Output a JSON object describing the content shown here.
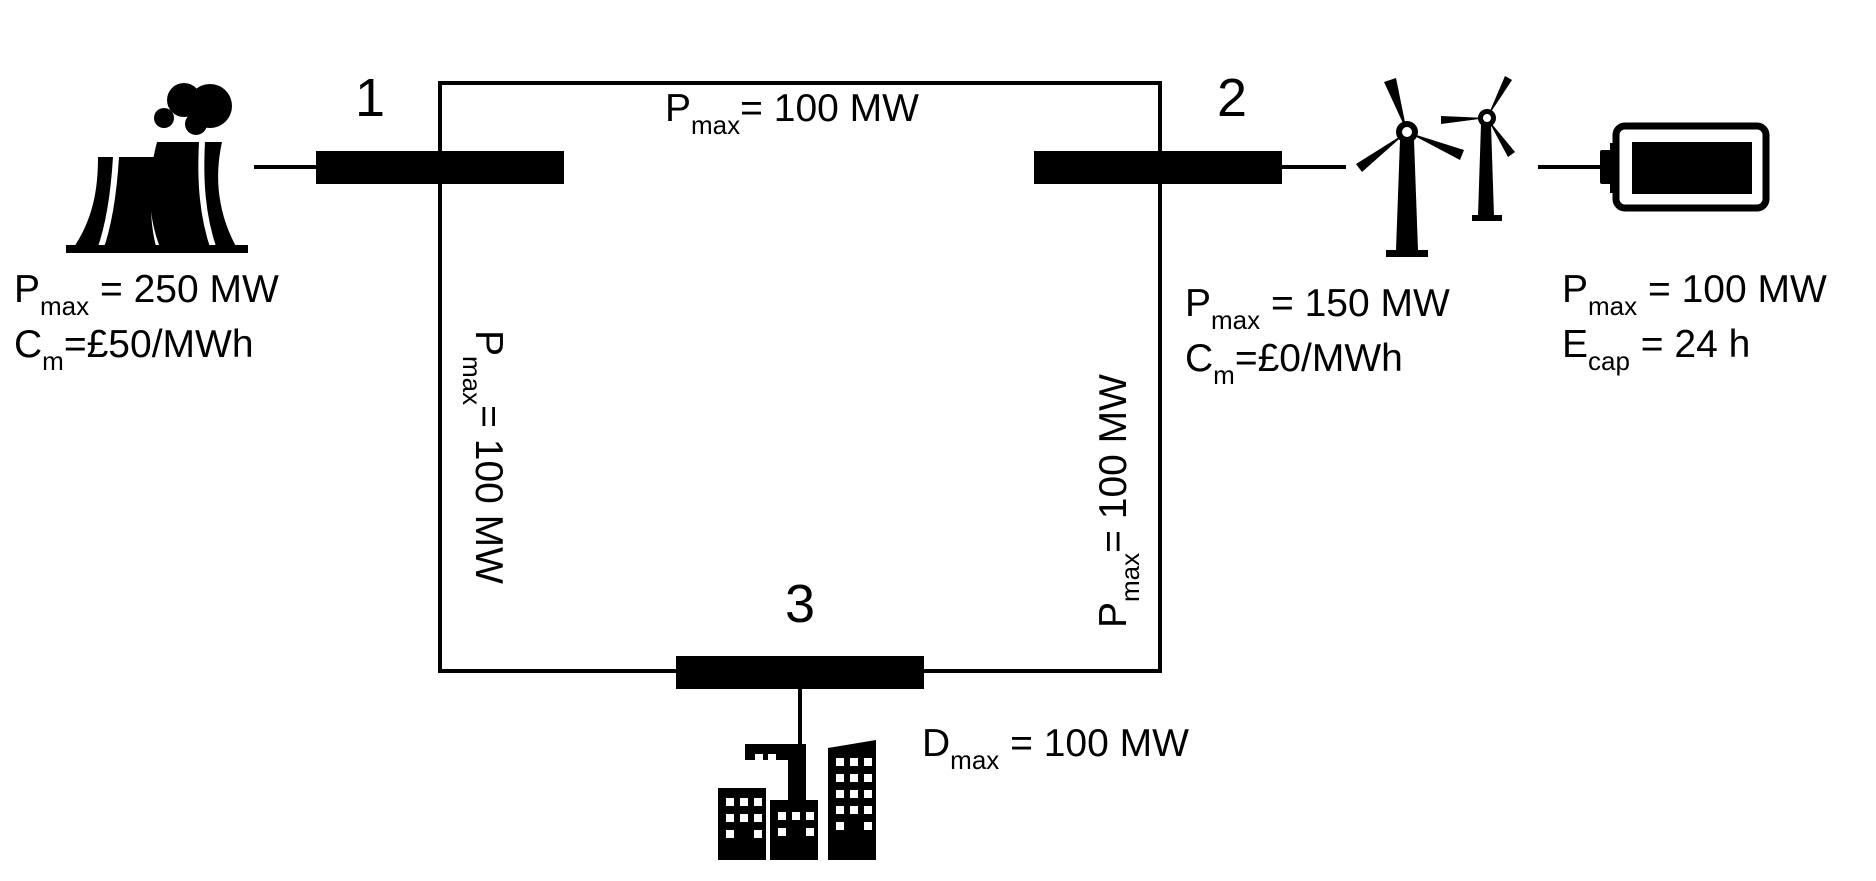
{
  "diagram": {
    "buses": [
      {
        "id": "1",
        "label": "1"
      },
      {
        "id": "2",
        "label": "2"
      },
      {
        "id": "3",
        "label": "3"
      }
    ],
    "lines": [
      {
        "from": "1",
        "to": "2",
        "prefix": "P",
        "sub": "max",
        "text": "= 100 MW"
      },
      {
        "from": "1",
        "to": "3",
        "prefix": "P",
        "sub": "max",
        "text": "= 100 MW"
      },
      {
        "from": "2",
        "to": "3",
        "prefix": "P",
        "sub": "max",
        "text": "= 100 MW"
      }
    ],
    "thermal_plant": {
      "icon": "power-plant-icon",
      "capacity": {
        "prefix": "P",
        "sub": "max",
        "text": " = 250 MW"
      },
      "cost": {
        "prefix": "C",
        "sub": "m",
        "text": "=£50/MWh"
      }
    },
    "wind_farm": {
      "icon": "wind-turbine-icon",
      "capacity": {
        "prefix": "P",
        "sub": "max",
        "text": " = 150 MW"
      },
      "cost": {
        "prefix": "C",
        "sub": "m",
        "text": "=£0/MWh"
      }
    },
    "battery": {
      "icon": "battery-icon",
      "capacity": {
        "prefix": "P",
        "sub": "max",
        "text": " = 100 MW"
      },
      "energy": {
        "prefix": "E",
        "sub": "cap",
        "text": " = 24 h"
      }
    },
    "load": {
      "icon": "city-buildings-icon",
      "demand": {
        "prefix": "D",
        "sub": "max",
        "text": " = 100 MW"
      }
    },
    "colors": {
      "ink": "#000000",
      "background": "#ffffff"
    }
  }
}
